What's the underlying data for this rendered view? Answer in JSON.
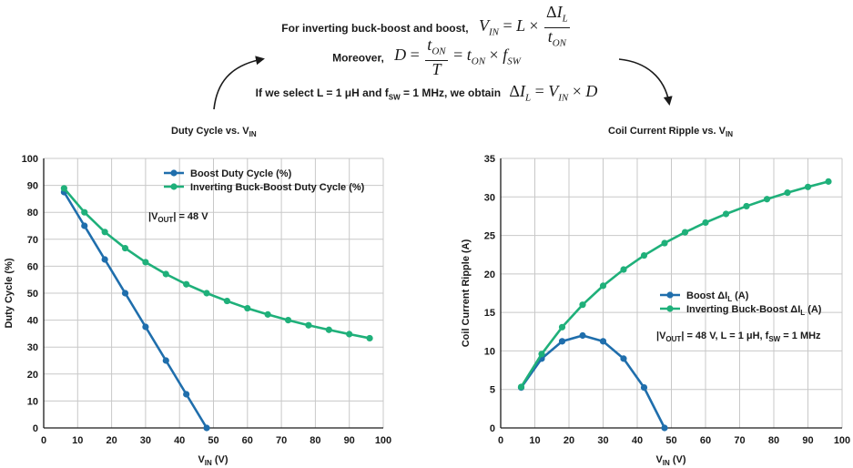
{
  "equations": {
    "line1_prefix": "For inverting buck-boost and boost,",
    "line2_prefix": "Moreover,",
    "line3_prefix_a": "If we select L = 1 μH and f",
    "line3_prefix_sub": "SW",
    "line3_prefix_b": " = 1 MHz, we obtain"
  },
  "colors": {
    "boost": "#1f6eac",
    "inverting": "#1fb07a",
    "grid": "#c8c8c8",
    "axis": "#1a1a1a"
  },
  "chart_data": [
    {
      "type": "line",
      "title": "Duty Cycle vs. V",
      "title_sub": "IN",
      "xlabel": "V",
      "xlabel_sub": "IN",
      "xlabel_suffix": " (V)",
      "ylabel": "Duty Cycle (%)",
      "xlim": [
        0,
        100
      ],
      "ylim": [
        0,
        100
      ],
      "xticks": [
        0,
        10,
        20,
        30,
        40,
        50,
        60,
        70,
        80,
        90,
        100
      ],
      "yticks": [
        0,
        10,
        20,
        30,
        40,
        50,
        60,
        70,
        80,
        90,
        100
      ],
      "grid": true,
      "legend_position": "top-center",
      "annotation": {
        "pre": "|V",
        "sub": "OUT",
        "post": "| = 48 V"
      },
      "series": [
        {
          "name": "Boost Duty Cycle (%)",
          "color_key": "boost",
          "x": [
            6,
            12,
            18,
            24,
            30,
            36,
            42,
            48
          ],
          "y": [
            87.5,
            75,
            62.5,
            50,
            37.5,
            25,
            12.5,
            0
          ]
        },
        {
          "name": "Inverting Buck-Boost Duty Cycle (%)",
          "color_key": "inverting",
          "x": [
            6,
            12,
            18,
            24,
            30,
            36,
            42,
            48,
            54,
            60,
            66,
            72,
            78,
            84,
            90,
            96
          ],
          "y": [
            88.9,
            80,
            72.7,
            66.7,
            61.5,
            57.1,
            53.3,
            50,
            47.1,
            44.4,
            42.1,
            40,
            38.1,
            36.4,
            34.8,
            33.3
          ]
        }
      ]
    },
    {
      "type": "line",
      "title": "Coil Current Ripple vs. V",
      "title_sub": "IN",
      "xlabel": "V",
      "xlabel_sub": "IN",
      "xlabel_suffix": " (V)",
      "ylabel": "Coil Current Ripple (A)",
      "xlim": [
        0,
        100
      ],
      "ylim": [
        0,
        35
      ],
      "xticks": [
        0,
        10,
        20,
        30,
        40,
        50,
        60,
        70,
        80,
        90,
        100
      ],
      "yticks": [
        0,
        5,
        10,
        15,
        20,
        25,
        30,
        35
      ],
      "grid": true,
      "legend_position": "center-right",
      "annotation": {
        "pre": "|V",
        "sub": "OUT",
        "post": "| = 48 V, L = 1 μH, f",
        "sub2": "SW",
        "post2": " = 1 MHz"
      },
      "series": [
        {
          "name": "Boost ΔI",
          "name_sub": "L",
          "name_suffix": " (A)",
          "color_key": "boost",
          "x": [
            6,
            12,
            18,
            24,
            30,
            36,
            42,
            48
          ],
          "y": [
            5.25,
            9,
            11.25,
            12,
            11.25,
            9,
            5.25,
            0
          ]
        },
        {
          "name": "Inverting Buck-Boost ΔI",
          "name_sub": "L",
          "name_suffix": " (A)",
          "color_key": "inverting",
          "x": [
            6,
            12,
            18,
            24,
            30,
            36,
            42,
            48,
            54,
            60,
            66,
            72,
            78,
            84,
            90,
            96
          ],
          "y": [
            5.33,
            9.6,
            13.09,
            16,
            18.46,
            20.57,
            22.4,
            24,
            25.41,
            26.67,
            27.79,
            28.8,
            29.71,
            30.55,
            31.3,
            32
          ]
        }
      ]
    }
  ]
}
